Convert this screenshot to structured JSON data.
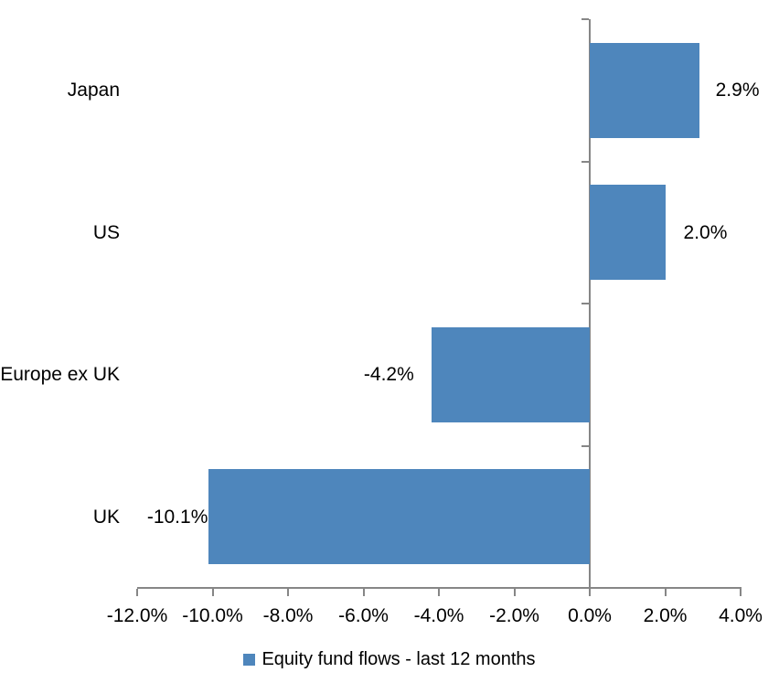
{
  "chart_data": {
    "type": "bar",
    "orientation": "horizontal",
    "title": "",
    "categories": [
      "Japan",
      "US",
      "Europe ex UK",
      "UK"
    ],
    "series": [
      {
        "name": "Equity fund flows - last 12 months",
        "values": [
          2.9,
          2.0,
          -4.2,
          -10.1
        ],
        "data_labels": [
          "2.9%",
          "2.0%",
          "-4.2%",
          "-10.1%"
        ]
      }
    ],
    "xlabel": "",
    "ylabel": "",
    "xlim": [
      -12,
      4
    ],
    "x_tick_step": 2,
    "x_tick_labels": [
      "-12.0%",
      "-10.0%",
      "-8.0%",
      "-6.0%",
      "-4.0%",
      "-2.0%",
      "0.0%",
      "2.0%",
      "4.0%"
    ],
    "grid": false,
    "legend": {
      "position": "bottom",
      "marker": "square",
      "label": "Equity fund flows - last 12 months"
    },
    "colors": {
      "bar": "#4E86BC",
      "axis": "#868686",
      "text": "#000000",
      "background": "#FFFFFF"
    }
  }
}
